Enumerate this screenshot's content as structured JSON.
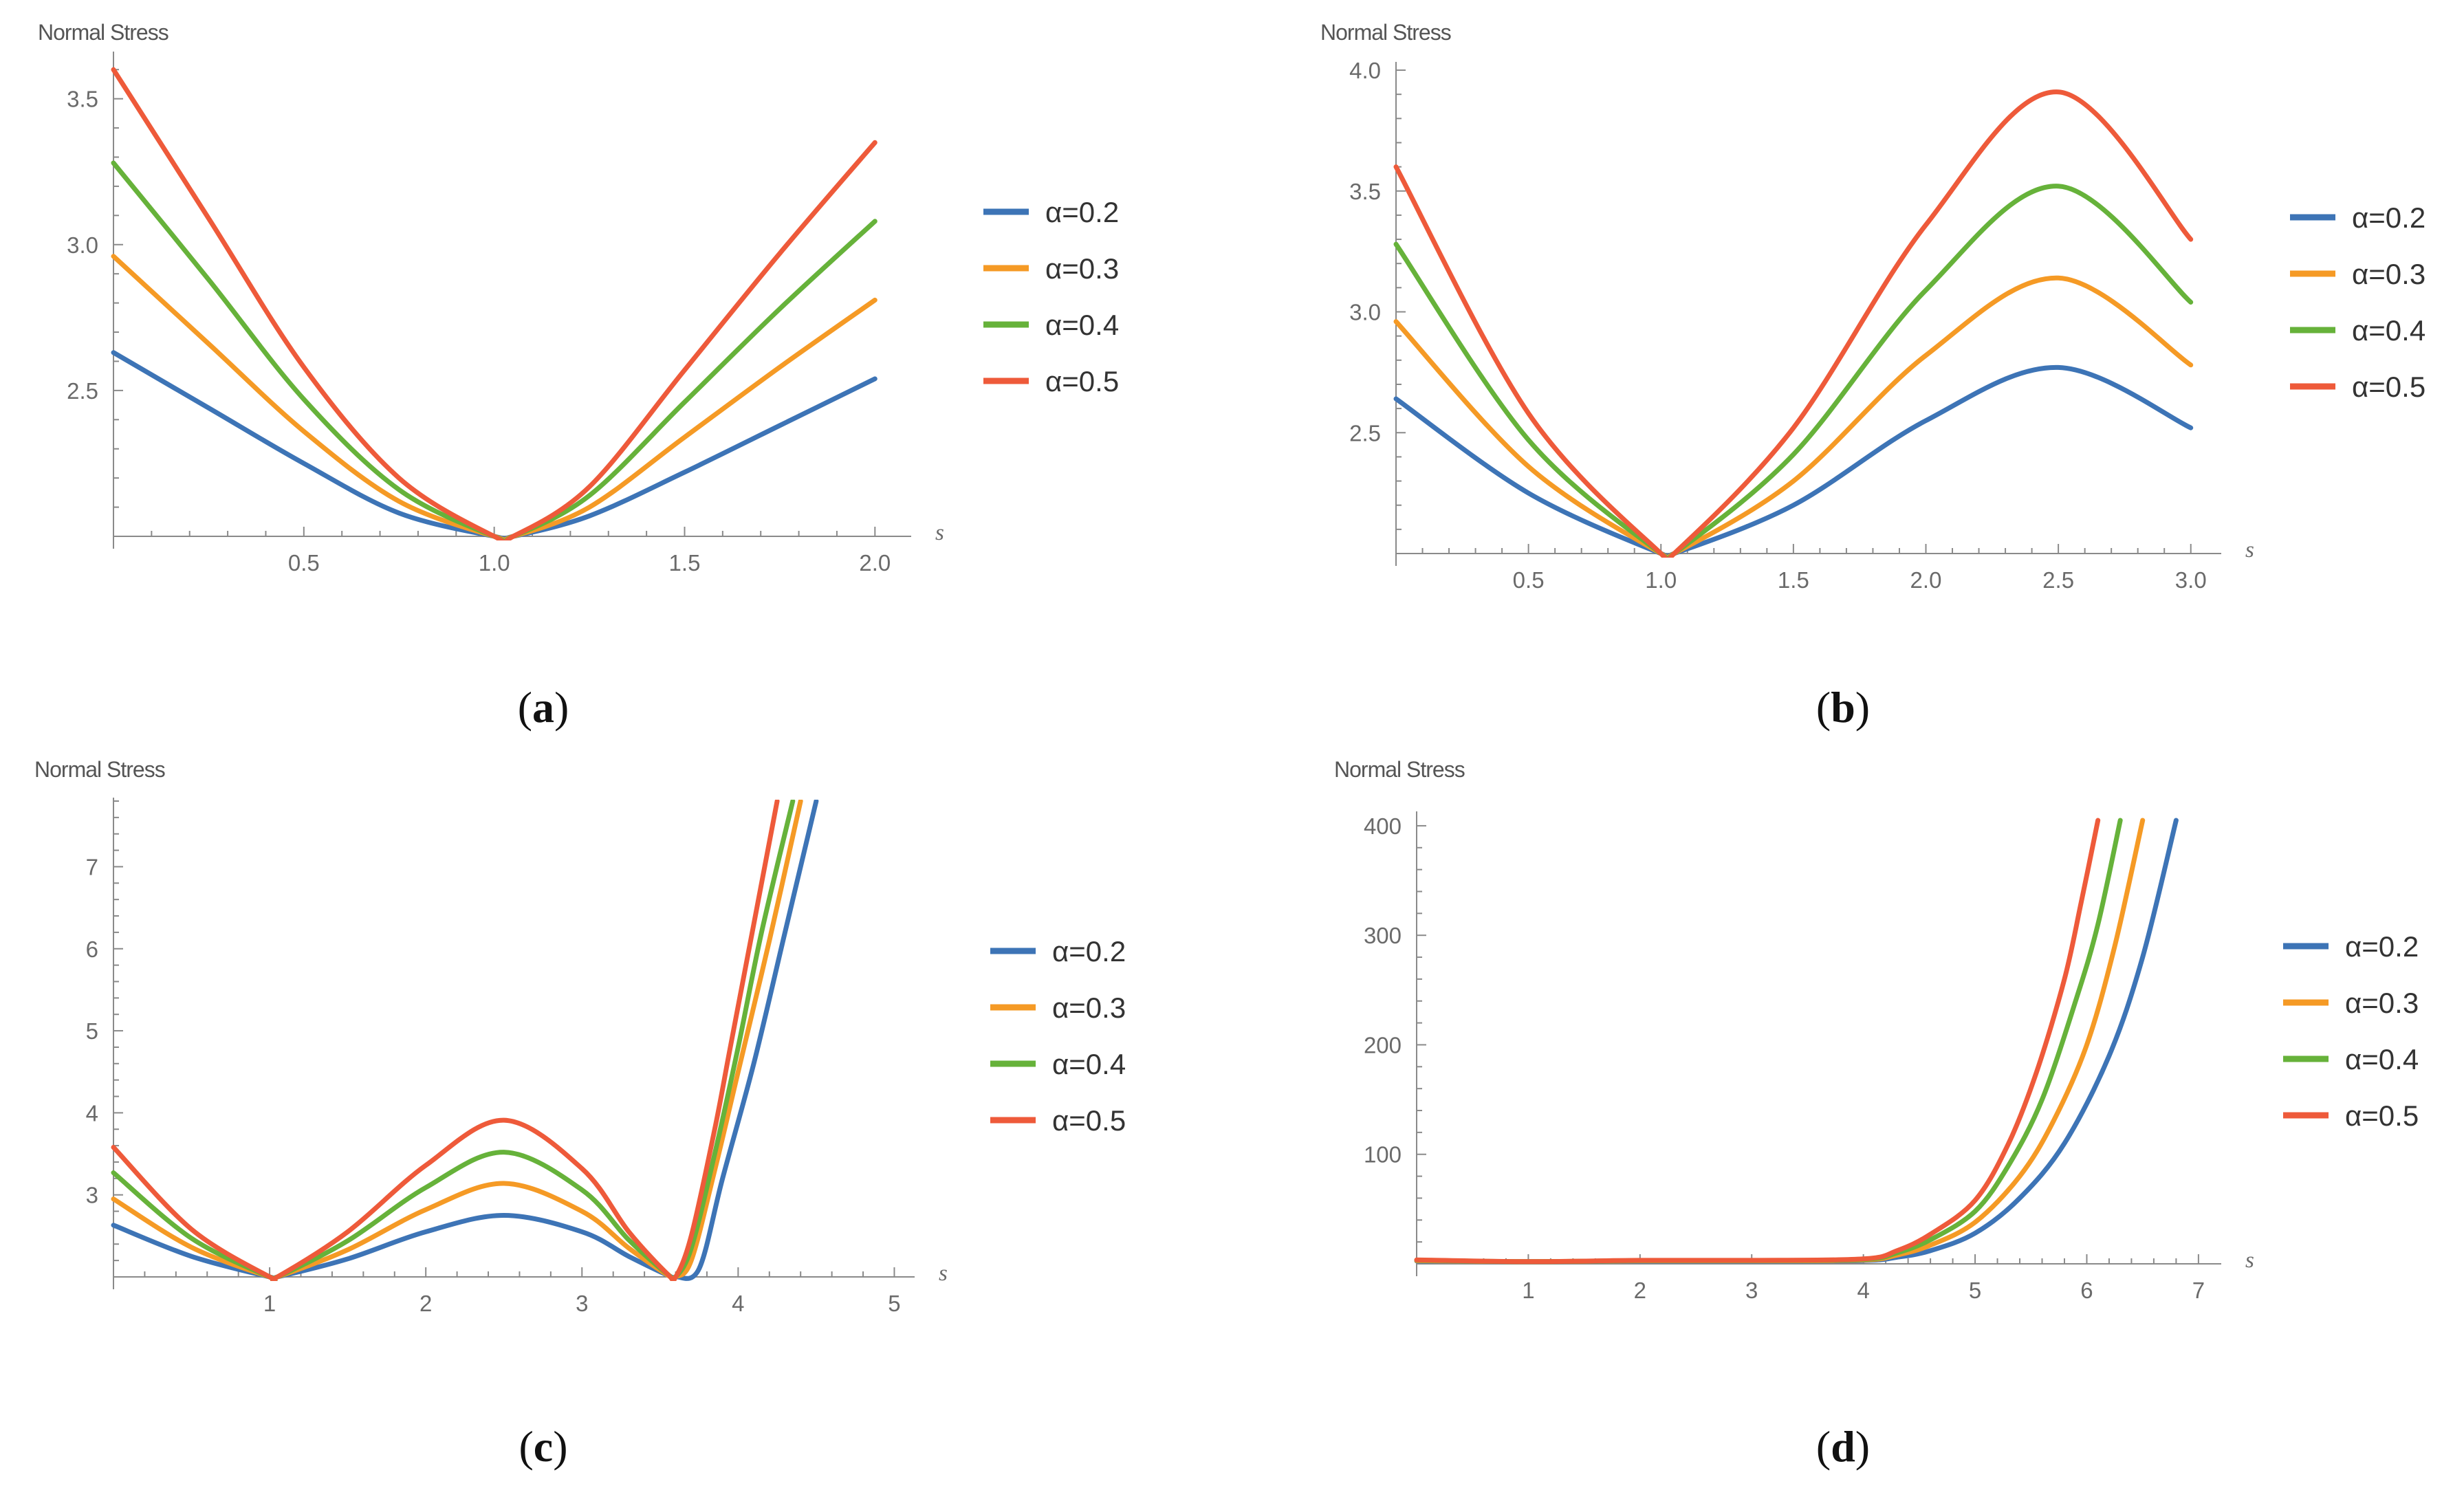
{
  "colors": {
    "a0.2": "#3D74B6",
    "a0.3": "#F59A25",
    "a0.4": "#66B23A",
    "a0.5": "#EE5A3A"
  },
  "chart_data": [
    {
      "type": "line",
      "panel": "(a)",
      "title": "",
      "ylabel": "Normal Stress",
      "xlabel": "s",
      "xlim": [
        0,
        2.05
      ],
      "ylim": [
        2.0,
        3.65
      ],
      "xticks": [
        "0.5",
        "1.0",
        "1.5",
        "2.0"
      ],
      "yticks": [
        "2.5",
        "3.0",
        "3.5"
      ],
      "legend": [
        "α=0.2",
        "α=0.3",
        "α=0.4",
        "α=0.5"
      ],
      "series": [
        {
          "name": "α=0.2",
          "x": [
            0,
            0.25,
            0.5,
            0.75,
            1.0,
            1.05,
            1.25,
            1.5,
            1.75,
            2.0
          ],
          "y": [
            2.63,
            2.44,
            2.25,
            2.08,
            2.0,
            2.0,
            2.07,
            2.22,
            2.38,
            2.54
          ]
        },
        {
          "name": "α=0.3",
          "x": [
            0,
            0.25,
            0.5,
            0.75,
            1.0,
            1.05,
            1.25,
            1.5,
            1.75,
            2.0
          ],
          "y": [
            2.96,
            2.66,
            2.36,
            2.12,
            2.0,
            2.0,
            2.1,
            2.34,
            2.58,
            2.81
          ]
        },
        {
          "name": "α=0.4",
          "x": [
            0,
            0.25,
            0.5,
            0.75,
            1.0,
            1.05,
            1.25,
            1.5,
            1.75,
            2.0
          ],
          "y": [
            3.28,
            2.88,
            2.47,
            2.16,
            2.0,
            2.0,
            2.14,
            2.46,
            2.78,
            3.08
          ]
        },
        {
          "name": "α=0.5",
          "x": [
            0,
            0.25,
            0.5,
            0.75,
            1.0,
            1.05,
            1.25,
            1.5,
            1.75,
            2.0
          ],
          "y": [
            3.6,
            3.09,
            2.58,
            2.2,
            2.0,
            2.0,
            2.17,
            2.57,
            2.97,
            3.35
          ]
        }
      ]
    },
    {
      "type": "line",
      "panel": "(b)",
      "title": "",
      "ylabel": "Normal Stress",
      "xlabel": "s",
      "xlim": [
        0,
        3.05
      ],
      "ylim": [
        2.0,
        4.02
      ],
      "xticks": [
        "0.5",
        "1.0",
        "1.5",
        "2.0",
        "2.5",
        "3.0"
      ],
      "yticks": [
        "2.5",
        "3.0",
        "3.5",
        "4.0"
      ],
      "legend": [
        "α=0.2",
        "α=0.3",
        "α=0.4",
        "α=0.5"
      ],
      "series": [
        {
          "name": "α=0.2",
          "x": [
            0,
            0.5,
            1.0,
            1.05,
            1.5,
            2.0,
            2.5,
            3.0
          ],
          "y": [
            2.64,
            2.25,
            2.0,
            2.0,
            2.2,
            2.55,
            2.77,
            2.52
          ]
        },
        {
          "name": "α=0.3",
          "x": [
            0,
            0.5,
            1.0,
            1.05,
            1.5,
            2.0,
            2.5,
            3.0
          ],
          "y": [
            2.96,
            2.36,
            2.0,
            2.0,
            2.3,
            2.82,
            3.14,
            2.78
          ]
        },
        {
          "name": "α=0.4",
          "x": [
            0,
            0.5,
            1.0,
            1.05,
            1.5,
            2.0,
            2.5,
            3.0
          ],
          "y": [
            3.28,
            2.47,
            2.0,
            2.0,
            2.41,
            3.09,
            3.52,
            3.04
          ]
        },
        {
          "name": "α=0.5",
          "x": [
            0,
            0.5,
            1.0,
            1.05,
            1.5,
            2.0,
            2.5,
            3.0
          ],
          "y": [
            3.6,
            2.58,
            2.0,
            2.0,
            2.52,
            3.36,
            3.91,
            3.3
          ]
        }
      ]
    },
    {
      "type": "line",
      "panel": "(c)",
      "title": "",
      "ylabel": "Normal Stress",
      "xlabel": "s",
      "xlim": [
        0,
        5.02
      ],
      "ylim": [
        2.0,
        7.8
      ],
      "xticks": [
        "1",
        "2",
        "3",
        "4",
        "5"
      ],
      "yticks": [
        "3",
        "4",
        "5",
        "6",
        "7"
      ],
      "legend": [
        "α=0.2",
        "α=0.3",
        "α=0.4",
        "α=0.5"
      ],
      "series": [
        {
          "name": "α=0.2",
          "x": [
            0,
            0.5,
            1.0,
            1.05,
            1.5,
            2.0,
            2.5,
            3.0,
            3.3,
            3.55,
            3.6,
            3.75,
            3.9,
            4.1,
            4.3,
            4.5
          ],
          "y": [
            2.63,
            2.25,
            2.0,
            2.0,
            2.22,
            2.55,
            2.75,
            2.55,
            2.25,
            2.02,
            2.0,
            2.1,
            3.2,
            4.6,
            6.2,
            7.8
          ]
        },
        {
          "name": "α=0.3",
          "x": [
            0,
            0.5,
            1.0,
            1.05,
            1.5,
            2.0,
            2.5,
            3.0,
            3.3,
            3.55,
            3.6,
            3.7,
            3.85,
            4.0,
            4.2,
            4.4
          ],
          "y": [
            2.95,
            2.36,
            2.0,
            2.0,
            2.33,
            2.82,
            3.14,
            2.8,
            2.35,
            2.02,
            2.0,
            2.2,
            3.3,
            4.5,
            6.1,
            7.8
          ]
        },
        {
          "name": "α=0.4",
          "x": [
            0,
            0.5,
            1.0,
            1.05,
            1.5,
            2.0,
            2.5,
            3.0,
            3.3,
            3.55,
            3.6,
            3.7,
            3.85,
            4.0,
            4.15,
            4.35
          ],
          "y": [
            3.27,
            2.47,
            2.0,
            2.0,
            2.44,
            3.09,
            3.52,
            3.06,
            2.45,
            2.03,
            2.0,
            2.35,
            3.5,
            4.8,
            6.2,
            7.8
          ]
        },
        {
          "name": "α=0.5",
          "x": [
            0,
            0.5,
            1.0,
            1.05,
            1.5,
            2.0,
            2.5,
            3.0,
            3.3,
            3.55,
            3.6,
            3.7,
            3.85,
            3.95,
            4.1,
            4.25
          ],
          "y": [
            3.58,
            2.58,
            2.0,
            2.0,
            2.55,
            3.36,
            3.91,
            3.32,
            2.55,
            2.03,
            2.0,
            2.5,
            3.8,
            4.8,
            6.3,
            7.8
          ]
        }
      ]
    },
    {
      "type": "line",
      "panel": "(d)",
      "title": "",
      "ylabel": "Normal Stress",
      "xlabel": "s",
      "xlim": [
        0,
        7.05
      ],
      "ylim": [
        0,
        410
      ],
      "xticks": [
        "1",
        "2",
        "3",
        "4",
        "5",
        "6",
        "7"
      ],
      "yticks": [
        "100",
        "200",
        "300",
        "400"
      ],
      "legend": [
        "α=0.2",
        "α=0.3",
        "α=0.4",
        "α=0.5"
      ],
      "series": [
        {
          "name": "α=0.2",
          "x": [
            0,
            1,
            2,
            3,
            4,
            4.3,
            4.6,
            5.0,
            5.4,
            5.8,
            6.2,
            6.5,
            6.8
          ],
          "y": [
            2.6,
            2.0,
            2.6,
            2.6,
            3,
            6,
            12,
            28,
            60,
            110,
            190,
            280,
            405
          ]
        },
        {
          "name": "α=0.3",
          "x": [
            0,
            1,
            2,
            3,
            4,
            4.3,
            4.6,
            5.0,
            5.4,
            5.7,
            6.0,
            6.25,
            6.5
          ],
          "y": [
            2.9,
            2.0,
            2.8,
            2.8,
            3.5,
            8,
            17,
            38,
            80,
            130,
            200,
            290,
            405
          ]
        },
        {
          "name": "α=0.4",
          "x": [
            0,
            1,
            2,
            3,
            4,
            4.3,
            4.6,
            5.0,
            5.3,
            5.6,
            5.9,
            6.1,
            6.3
          ],
          "y": [
            3.3,
            2.0,
            3.0,
            3.0,
            4,
            10,
            22,
            48,
            90,
            150,
            240,
            310,
            405
          ]
        },
        {
          "name": "α=0.5",
          "x": [
            0,
            1,
            2,
            3,
            4,
            4.3,
            4.6,
            5.0,
            5.3,
            5.55,
            5.8,
            5.95,
            6.1
          ],
          "y": [
            3.6,
            2.0,
            3.2,
            3.2,
            4.5,
            12,
            27,
            58,
            110,
            175,
            260,
            330,
            405
          ]
        }
      ]
    }
  ]
}
